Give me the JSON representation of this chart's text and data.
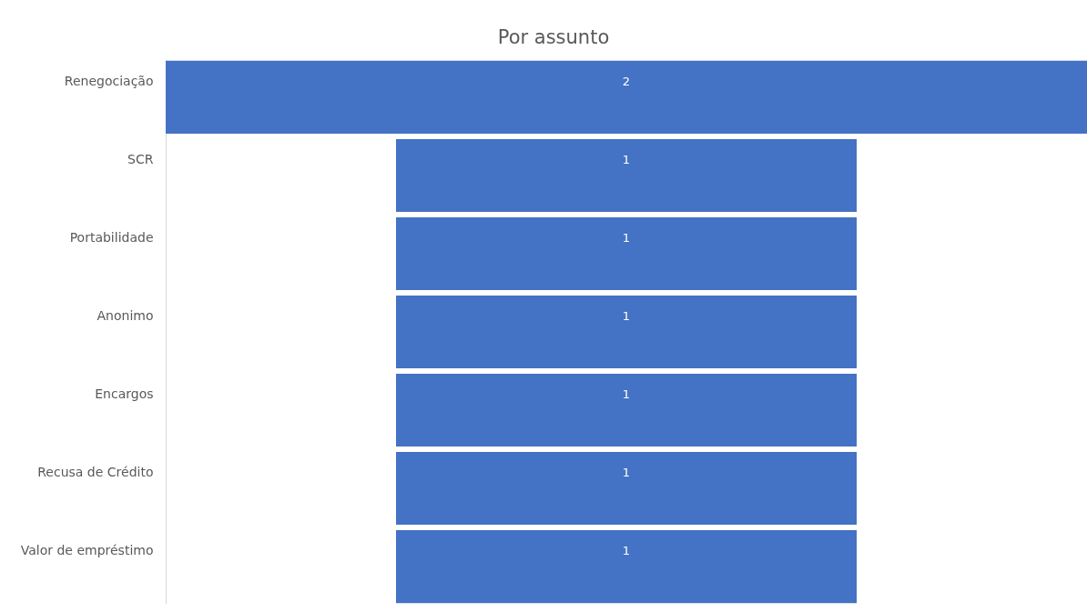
{
  "chart_data": {
    "type": "other",
    "title": "Por assunto",
    "categories": [
      "Renegociação",
      "SCR",
      "Portabilidade",
      "Anonimo",
      "Encargos",
      "Recusa de Crédito",
      "Valor de empréstimo"
    ],
    "values": [
      2,
      1,
      1,
      1,
      1,
      1,
      1
    ],
    "color": "#4472c4",
    "data_labels": true
  }
}
